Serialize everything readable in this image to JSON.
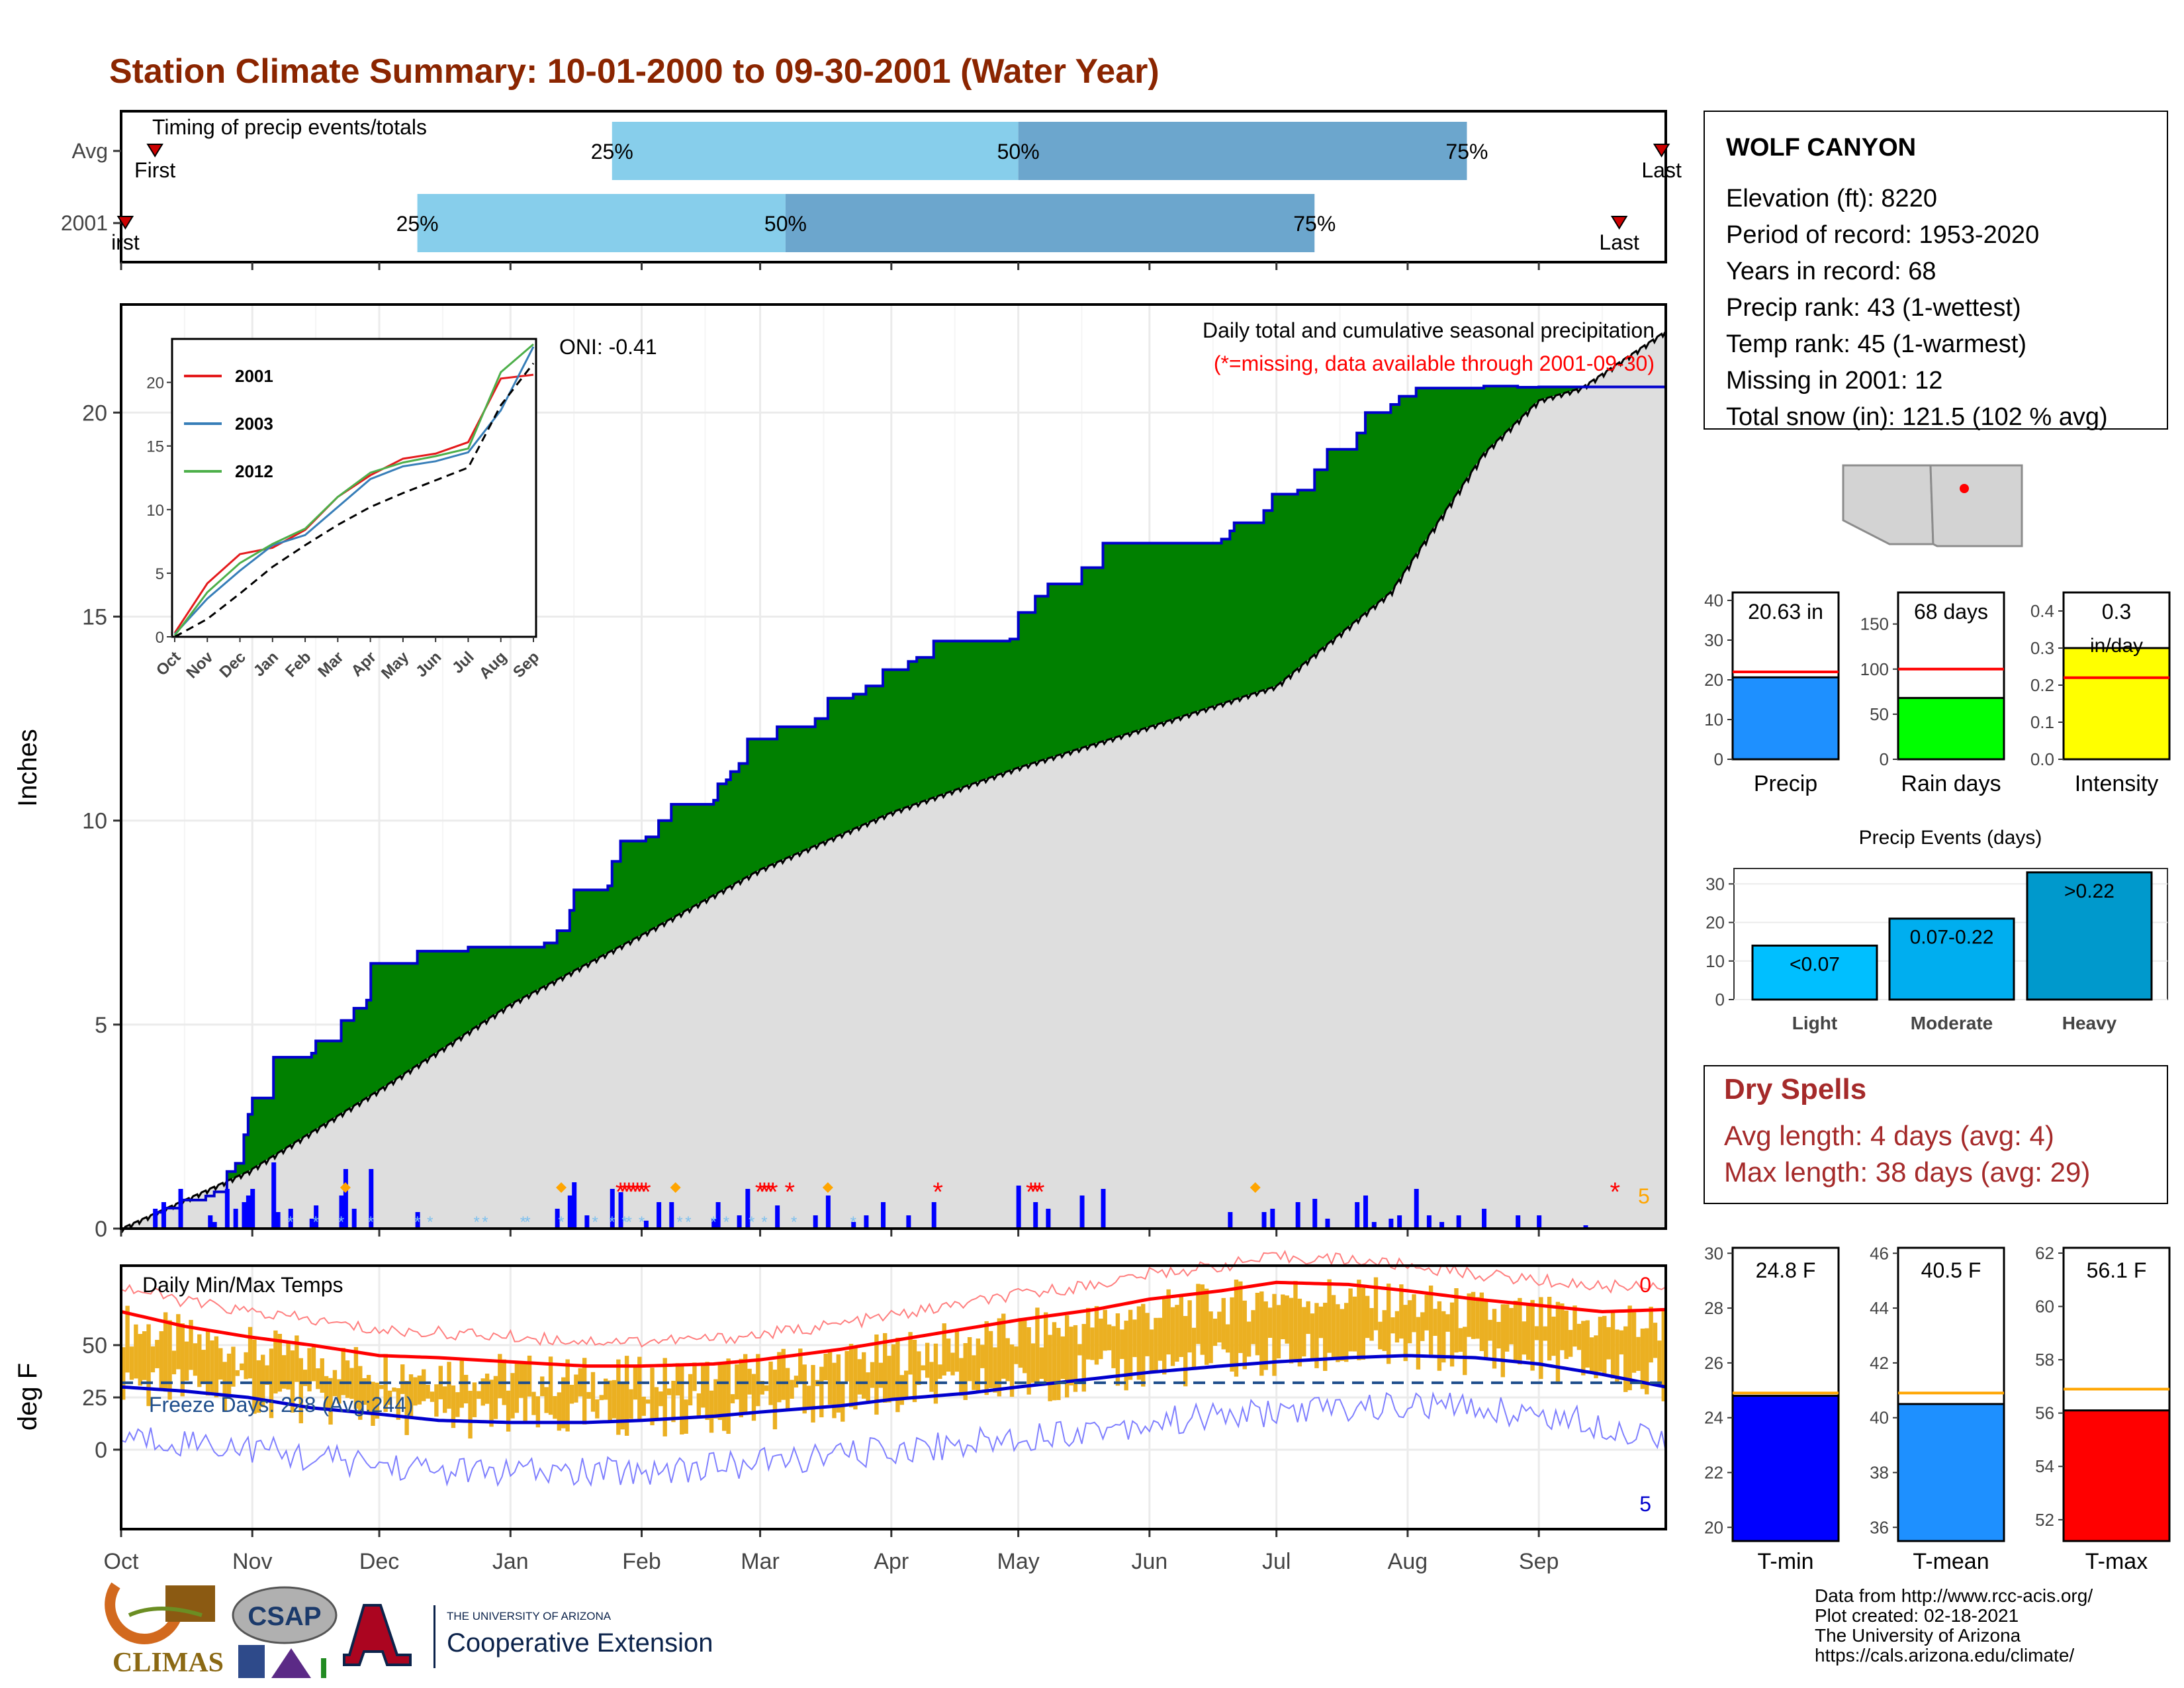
{
  "page_title": "Station Climate Summary: 10-01-2000 to 09-30-2001 (Water Year)",
  "station": {
    "name": "WOLF CANYON",
    "lines": [
      "Elevation (ft): 8220",
      "Period of record: 1953-2020",
      "Years in record: 68",
      "Precip rank: 43 (1-wettest)",
      "Temp rank: 45 (1-warmest)",
      "Missing in 2001: 12",
      "Total snow (in): 121.5 (102 % avg)"
    ]
  },
  "dry_spells": {
    "title": "Dry Spells",
    "avg": "Avg length: 4 days (avg: 4)",
    "max": "Max length: 38 days (avg: 29)"
  },
  "months": [
    "Oct",
    "Nov",
    "Dec",
    "Jan",
    "Feb",
    "Mar",
    "Apr",
    "May",
    "Jun",
    "Jul",
    "Aug",
    "Sep"
  ],
  "inset_months": [
    "Oct",
    "Nov",
    "Dec",
    "Jan",
    "Feb",
    "Mar",
    "Apr",
    "May",
    "Jun",
    "Jul",
    "Aug",
    "Sep"
  ],
  "credits": [
    "Data from http://www.rcc-acis.org/",
    "Plot created: 02-18-2021",
    "The University of Arizona",
    "https://cals.arizona.edu/climate/"
  ],
  "logos": {
    "climas": "CLIMAS",
    "csap": "CSAP",
    "ua_small": "THE UNIVERSITY OF ARIZONA",
    "ua_big": "Cooperative Extension"
  },
  "colors": {
    "title": "#8B2500",
    "cumulative_fill": "#008000",
    "average_fill": "#DEDEDE",
    "deficit_fill": "#8B5A12",
    "timing_light": "#87CEEB",
    "timing_dark": "#6CA6CD",
    "daily_bars": "#0000FF",
    "temp_bars": "#EBB022",
    "tmax_line": "#FF0000",
    "tmin_line": "#0000CD"
  },
  "chart_data": [
    {
      "type": "bar",
      "name": "timing",
      "title": "Timing of precip events/totals",
      "categories": [
        "Avg",
        "2001"
      ],
      "rows": [
        {
          "label": "Avg",
          "first": "Oct 9",
          "q25": "Jan 25",
          "q50": "May 1",
          "q75": "Aug 15",
          "last": "Sep 30",
          "first_label": "First",
          "last_label": "Last",
          "q25_label": "25%",
          "q50_label": "50%",
          "q75_label": "75%"
        },
        {
          "label": "2001",
          "first": "Oct 2",
          "q25": "Dec 10",
          "q50": "Mar 7",
          "q75": "Jul 10",
          "last": "Sep 20",
          "first_label": "irst",
          "last_label": "Last",
          "q25_label": "25%",
          "q50_label": "50%",
          "q75_label": "75%"
        }
      ]
    },
    {
      "type": "area",
      "name": "cumulative_precip",
      "title": "Daily total and cumulative seasonal precipitation",
      "subtitle": "(*=missing, data available through 2001-09-30)",
      "oni": "ONI: -0.41",
      "ylabel": "Inches",
      "ylim": [
        0,
        22
      ],
      "yticks": [
        0,
        5,
        10,
        15,
        20
      ],
      "x_unit": "day of water year (day 0 = Oct 1)",
      "series": [
        {
          "name": "2001",
          "x": [
            0,
            8,
            10,
            14,
            20,
            22,
            25,
            27,
            29,
            30,
            31,
            36,
            45,
            46,
            52,
            55,
            58,
            59,
            70,
            82,
            100,
            103,
            106,
            107,
            115,
            116,
            118,
            124,
            127,
            130,
            140,
            141,
            143,
            144,
            146,
            148,
            155,
            164,
            167,
            173,
            176,
            180,
            186,
            188,
            192,
            210,
            212,
            216,
            219,
            227,
            232,
            260,
            262,
            263,
            270,
            272,
            278,
            282,
            285,
            292,
            294,
            300,
            302,
            306,
            322,
            330,
            335,
            346,
            365
          ],
          "y": [
            0,
            0.4,
            0.5,
            0.7,
            0.8,
            0.9,
            1.4,
            1.6,
            2.3,
            2.8,
            3.2,
            4.2,
            4.3,
            4.6,
            5.1,
            5.4,
            5.6,
            6.5,
            6.8,
            6.9,
            7.0,
            7.3,
            7.8,
            8.3,
            8.4,
            9.0,
            9.5,
            9.6,
            10.0,
            10.4,
            10.5,
            10.9,
            11.0,
            11.2,
            11.4,
            12.0,
            12.3,
            12.5,
            13.0,
            13.1,
            13.3,
            13.7,
            13.9,
            14.0,
            14.4,
            14.45,
            15.1,
            15.5,
            15.8,
            16.2,
            16.8,
            16.9,
            17.1,
            17.3,
            17.6,
            18.0,
            18.1,
            18.6,
            19.1,
            19.5,
            20.0,
            20.2,
            20.4,
            20.6,
            20.65,
            20.62,
            20.63,
            20.63,
            20.63
          ]
        },
        {
          "name": "average",
          "x": [
            0,
            30,
            61,
            92,
            123,
            151,
            182,
            212,
            243,
            273,
            300,
            322,
            335,
            345,
            365
          ],
          "y": [
            0,
            1.4,
            3.4,
            5.5,
            7.2,
            8.8,
            10.2,
            11.3,
            12.3,
            13.3,
            15.6,
            19.0,
            20.3,
            20.6,
            22.0
          ]
        }
      ],
      "daily_precip": [
        {
          "x": 8,
          "y": 0.3
        },
        {
          "x": 10,
          "y": 0.4
        },
        {
          "x": 14,
          "y": 0.6
        },
        {
          "x": 21,
          "y": 0.2
        },
        {
          "x": 22,
          "y": 0.1
        },
        {
          "x": 25,
          "y": 0.6
        },
        {
          "x": 27,
          "y": 0.3
        },
        {
          "x": 29,
          "y": 0.4
        },
        {
          "x": 30,
          "y": 0.5
        },
        {
          "x": 31,
          "y": 0.6
        },
        {
          "x": 36,
          "y": 1.0
        },
        {
          "x": 37,
          "y": 0.25
        },
        {
          "x": 40,
          "y": 0.3
        },
        {
          "x": 45,
          "y": 0.15
        },
        {
          "x": 46,
          "y": 0.35
        },
        {
          "x": 52,
          "y": 0.5
        },
        {
          "x": 53,
          "y": 0.9
        },
        {
          "x": 55,
          "y": 0.3
        },
        {
          "x": 59,
          "y": 0.9
        },
        {
          "x": 70,
          "y": 0.25
        },
        {
          "x": 103,
          "y": 0.3
        },
        {
          "x": 106,
          "y": 0.5
        },
        {
          "x": 107,
          "y": 0.7
        },
        {
          "x": 110,
          "y": 0.2
        },
        {
          "x": 116,
          "y": 0.6
        },
        {
          "x": 118,
          "y": 0.55
        },
        {
          "x": 124,
          "y": 0.12
        },
        {
          "x": 127,
          "y": 0.4
        },
        {
          "x": 130,
          "y": 0.4
        },
        {
          "x": 140,
          "y": 0.15
        },
        {
          "x": 141,
          "y": 0.4
        },
        {
          "x": 146,
          "y": 0.2
        },
        {
          "x": 148,
          "y": 0.6
        },
        {
          "x": 155,
          "y": 0.35
        },
        {
          "x": 164,
          "y": 0.2
        },
        {
          "x": 167,
          "y": 0.5
        },
        {
          "x": 173,
          "y": 0.1
        },
        {
          "x": 176,
          "y": 0.2
        },
        {
          "x": 180,
          "y": 0.4
        },
        {
          "x": 186,
          "y": 0.2
        },
        {
          "x": 192,
          "y": 0.4
        },
        {
          "x": 212,
          "y": 0.65
        },
        {
          "x": 216,
          "y": 0.4
        },
        {
          "x": 219,
          "y": 0.3
        },
        {
          "x": 227,
          "y": 0.5
        },
        {
          "x": 232,
          "y": 0.6
        },
        {
          "x": 262,
          "y": 0.25
        },
        {
          "x": 270,
          "y": 0.25
        },
        {
          "x": 272,
          "y": 0.3
        },
        {
          "x": 278,
          "y": 0.4
        },
        {
          "x": 282,
          "y": 0.45
        },
        {
          "x": 285,
          "y": 0.15
        },
        {
          "x": 292,
          "y": 0.4
        },
        {
          "x": 294,
          "y": 0.5
        },
        {
          "x": 296,
          "y": 0.1
        },
        {
          "x": 300,
          "y": 0.15
        },
        {
          "x": 302,
          "y": 0.2
        },
        {
          "x": 306,
          "y": 0.6
        },
        {
          "x": 309,
          "y": 0.2
        },
        {
          "x": 312,
          "y": 0.1
        },
        {
          "x": 316,
          "y": 0.2
        },
        {
          "x": 322,
          "y": 0.3
        },
        {
          "x": 330,
          "y": 0.2
        },
        {
          "x": 335,
          "y": 0.2
        },
        {
          "x": 346,
          "y": 0.05
        }
      ],
      "snow_days": [
        {
          "x": 40,
          "y": 0.05
        },
        {
          "x": 46,
          "y": 0.05
        },
        {
          "x": 52,
          "y": 0.05
        },
        {
          "x": 59,
          "y": 0.05
        },
        {
          "x": 70,
          "y": 0.05
        },
        {
          "x": 73,
          "y": 0.05
        },
        {
          "x": 84,
          "y": 0.05
        },
        {
          "x": 86,
          "y": 0.05
        },
        {
          "x": 95,
          "y": 0.05
        },
        {
          "x": 96,
          "y": 0.05
        },
        {
          "x": 104,
          "y": 0.05
        },
        {
          "x": 112,
          "y": 0.05
        },
        {
          "x": 116,
          "y": 0.05
        },
        {
          "x": 119,
          "y": 0.05
        },
        {
          "x": 120,
          "y": 0.05
        },
        {
          "x": 123,
          "y": 0.05
        },
        {
          "x": 132,
          "y": 0.05
        },
        {
          "x": 134,
          "y": 0.05
        },
        {
          "x": 140,
          "y": 0.05
        },
        {
          "x": 143,
          "y": 0.05
        },
        {
          "x": 149,
          "y": 0.05
        },
        {
          "x": 152,
          "y": 0.05
        },
        {
          "x": 159,
          "y": 0.05
        },
        {
          "x": 173,
          "y": 0.05
        }
      ],
      "max_markers": [
        {
          "x": 53,
          "y": 1.0
        },
        {
          "x": 104,
          "y": 0.8
        },
        {
          "x": 131,
          "y": 1.1
        },
        {
          "x": 167,
          "y": 0.8
        },
        {
          "x": 268,
          "y": 0.8
        }
      ],
      "max_marker_count": "5",
      "missing_markers": [
        {
          "x": 118,
          "y": 1.0
        },
        {
          "x": 119,
          "y": 1.0
        },
        {
          "x": 120,
          "y": 1.0
        },
        {
          "x": 121,
          "y": 1.0
        },
        {
          "x": 122,
          "y": 1.0
        },
        {
          "x": 123,
          "y": 1.0
        },
        {
          "x": 124,
          "y": 1.0
        },
        {
          "x": 151,
          "y": 1.0
        },
        {
          "x": 152,
          "y": 1.0
        },
        {
          "x": 153,
          "y": 1.0
        },
        {
          "x": 154,
          "y": 1.0
        },
        {
          "x": 158,
          "y": 1.0
        },
        {
          "x": 193,
          "y": 1.0
        },
        {
          "x": 215,
          "y": 1.0
        },
        {
          "x": 216,
          "y": 1.0
        },
        {
          "x": 217,
          "y": 1.0
        },
        {
          "x": 353,
          "y": 1.0
        }
      ]
    },
    {
      "type": "line",
      "name": "inset_cumulative",
      "categories": [
        "Oct",
        "Nov",
        "Dec",
        "Jan",
        "Feb",
        "Mar",
        "Apr",
        "May",
        "Jun",
        "Jul",
        "Aug",
        "Sep"
      ],
      "ylim": [
        0,
        23
      ],
      "yticks": [
        0,
        5,
        10,
        15,
        20
      ],
      "series": [
        {
          "name": "2001",
          "values": [
            0.3,
            4.2,
            6.5,
            7.0,
            8.4,
            11.0,
            12.7,
            14.0,
            14.4,
            15.3,
            20.3,
            20.6
          ]
        },
        {
          "name": "2003",
          "values": [
            0.2,
            3.0,
            5.2,
            7.2,
            8.0,
            10.2,
            12.4,
            13.4,
            13.8,
            14.5,
            17.8,
            22.8
          ]
        },
        {
          "name": "2012",
          "values": [
            0.1,
            3.5,
            5.8,
            7.3,
            8.5,
            11.0,
            12.9,
            13.7,
            14.2,
            14.8,
            20.8,
            23.0
          ]
        },
        {
          "values": [
            0.0,
            1.4,
            3.4,
            5.5,
            7.2,
            8.8,
            10.2,
            11.3,
            12.3,
            13.3,
            18.2,
            21.5
          ]
        }
      ]
    },
    {
      "type": "bar",
      "name": "daily_temps",
      "title": "Daily Min/Max Temps",
      "ylabel": "deg F",
      "ylim": [
        -38,
        88
      ],
      "yticks": [
        0,
        25,
        50
      ],
      "annotation": "Freeze Days: 228 (Avg:244)",
      "count_top": "0",
      "count_bottom": "5",
      "freeze_ref": 32,
      "series": [
        {
          "name": "avg_tmax",
          "x": [
            0,
            15,
            30,
            45,
            61,
            75,
            92,
            110,
            123,
            140,
            151,
            170,
            182,
            200,
            212,
            230,
            243,
            260,
            273,
            290,
            304,
            320,
            335,
            350,
            365
          ],
          "y": [
            66,
            59,
            54,
            50,
            45,
            44,
            42,
            40,
            40,
            41,
            43,
            48,
            52,
            58,
            62,
            67,
            72,
            76,
            80,
            79,
            76,
            72,
            69,
            66,
            67
          ]
        },
        {
          "name": "avg_tmin",
          "x": [
            0,
            15,
            30,
            45,
            61,
            75,
            92,
            110,
            123,
            140,
            151,
            170,
            182,
            200,
            212,
            230,
            243,
            260,
            273,
            290,
            304,
            320,
            335,
            350,
            365
          ],
          "y": [
            30,
            28,
            25,
            20,
            17,
            14,
            13,
            13,
            14,
            16,
            18,
            21,
            24,
            27,
            30,
            34,
            37,
            40,
            42,
            44,
            45,
            44,
            41,
            36,
            30
          ]
        }
      ]
    },
    {
      "type": "bar",
      "name": "precip_summary",
      "categories": [
        "Precip",
        "Rain days",
        "Intensity"
      ],
      "values": [
        20.63,
        68,
        0.3
      ],
      "value_labels": [
        "20.63 in",
        "68 days",
        "0.3"
      ],
      "value_units": [
        "",
        "",
        "in/day"
      ],
      "averages": [
        22.0,
        100,
        0.22
      ],
      "ylims": [
        [
          0,
          42
        ],
        [
          0,
          185
        ],
        [
          0,
          0.45
        ]
      ],
      "yticks": [
        [
          0,
          10,
          20,
          30,
          40
        ],
        [
          0,
          50,
          100,
          150
        ],
        [
          0.0,
          0.1,
          0.2,
          0.3,
          0.4
        ]
      ],
      "colors": [
        "#1E90FF",
        "#00FF00",
        "#FFFF00"
      ]
    },
    {
      "type": "bar",
      "name": "precip_events",
      "title": "Precip Events (days)",
      "categories": [
        "Light",
        "Moderate",
        "Heavy"
      ],
      "values": [
        14,
        21,
        33
      ],
      "value_labels": [
        "<0.07",
        "0.07-0.22",
        ">0.22"
      ],
      "ylim": [
        0,
        34
      ],
      "yticks": [
        0,
        10,
        20,
        30
      ],
      "colors": [
        "#00BFFF",
        "#00AEEF",
        "#0099CC"
      ]
    },
    {
      "type": "bar",
      "name": "temp_summary",
      "categories": [
        "T-min",
        "T-mean",
        "T-max"
      ],
      "values": [
        24.8,
        40.5,
        56.1
      ],
      "value_labels": [
        "24.8 F",
        "40.5 F",
        "56.1 F"
      ],
      "averages": [
        24.9,
        40.9,
        56.9
      ],
      "ylims": [
        [
          19.5,
          30.2
        ],
        [
          35.5,
          46.2
        ],
        [
          51.2,
          62.2
        ]
      ],
      "yticks": [
        [
          20,
          22,
          24,
          26,
          28,
          30
        ],
        [
          36,
          38,
          40,
          42,
          44,
          46
        ],
        [
          52,
          54,
          56,
          58,
          60,
          62
        ]
      ],
      "colors": [
        "#0000FF",
        "#1E90FF",
        "#FF0000"
      ]
    }
  ]
}
